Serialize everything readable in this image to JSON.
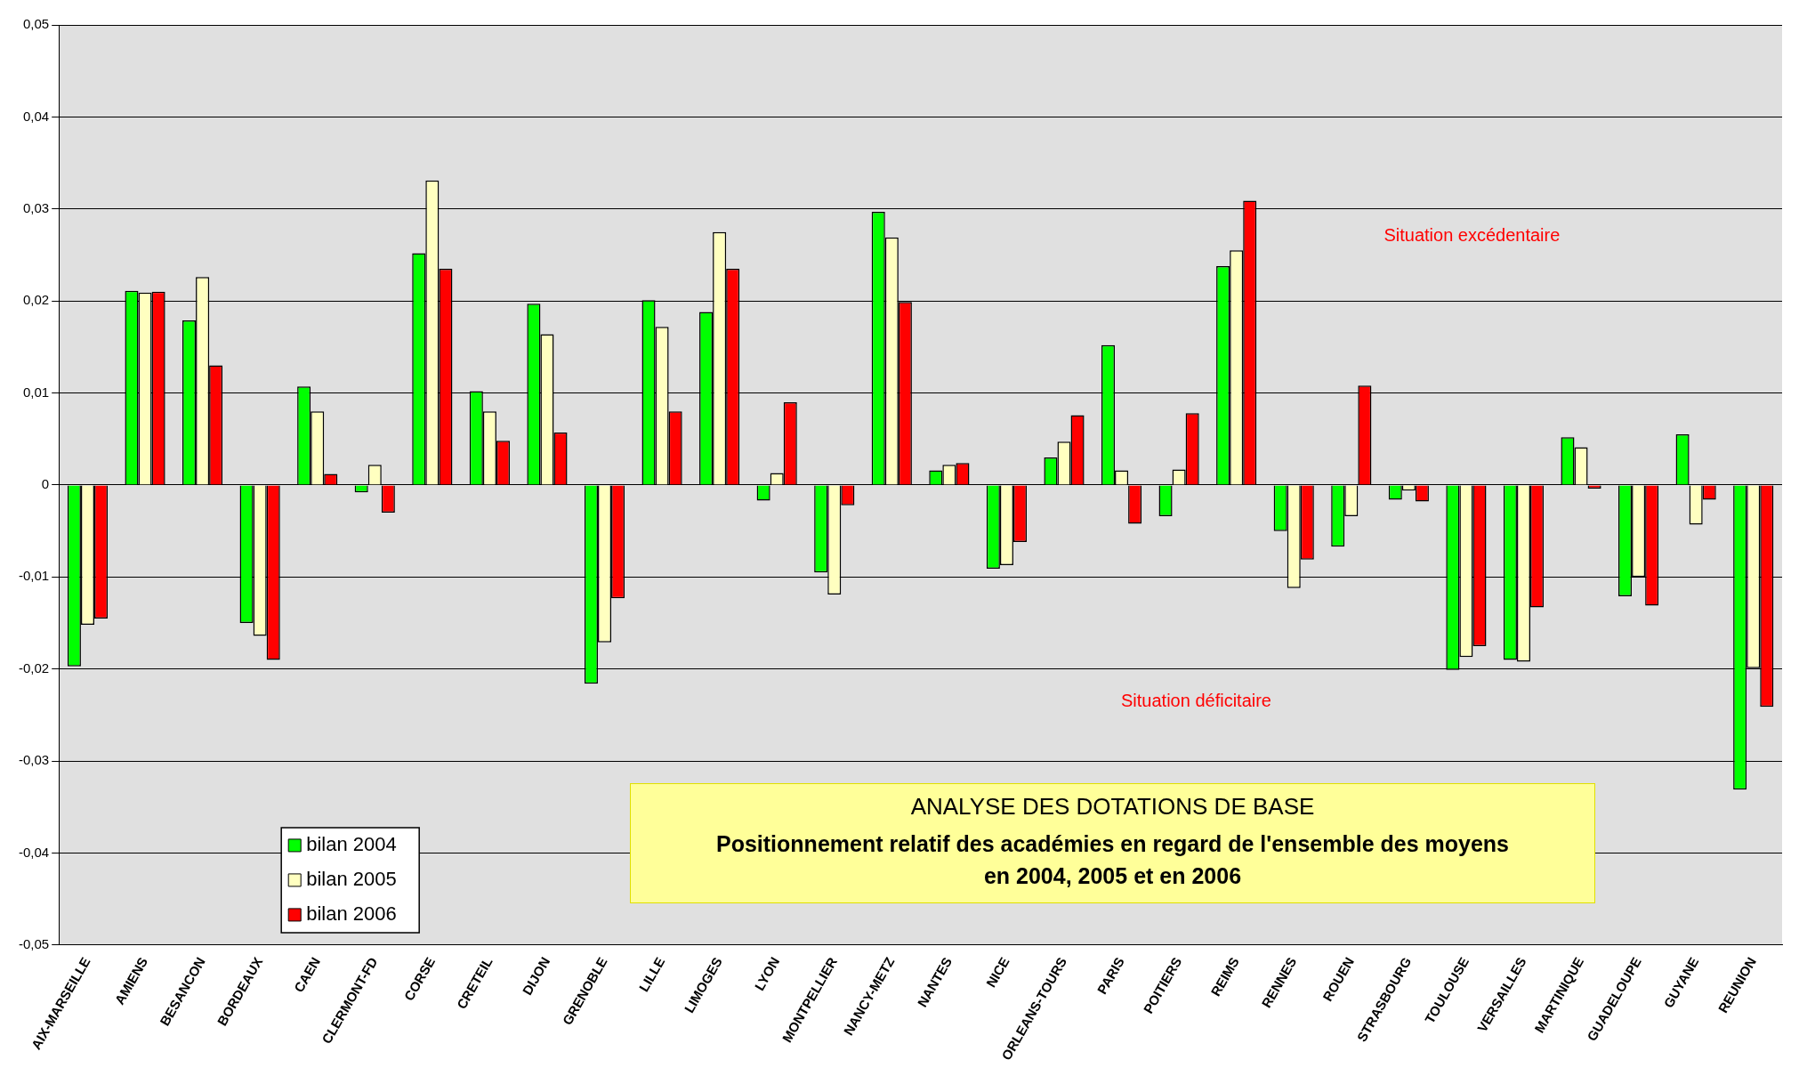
{
  "chart_data": {
    "type": "bar",
    "title": "ANALYSE DES DOTATIONS DE BASE",
    "subtitle": "Positionnement relatif des académies en regard de l'ensemble des moyens en 2004, 2005 et en 2006",
    "categories": [
      "AIX-MARSEILLE",
      "AMIENS",
      "BESANCON",
      "BORDEAUX",
      "CAEN",
      "CLERMONT-FD",
      "CORSE",
      "CRETEIL",
      "DIJON",
      "GRENOBLE",
      "LILLE",
      "LIMOGES",
      "LYON",
      "MONTPELLIER",
      "NANCY-METZ",
      "NANTES",
      "NICE",
      "ORLEANS-TOURS",
      "PARIS",
      "POITIERS",
      "REIMS",
      "RENNES",
      "ROUEN",
      "STRASBOURG",
      "TOULOUSE",
      "VERSAILLES",
      "MARTINIQUE",
      "GUADELOUPE",
      "GUYANE",
      "REUNION"
    ],
    "series": [
      {
        "name": "bilan 2004",
        "color": "#00ff00",
        "values": [
          -0.0197,
          0.0211,
          0.0179,
          -0.015,
          0.0107,
          -0.0008,
          0.0252,
          0.0102,
          0.0197,
          -0.0216,
          0.0201,
          0.0188,
          -0.0017,
          -0.0095,
          0.0297,
          0.0016,
          -0.0091,
          0.003,
          0.0152,
          -0.0034,
          0.0238,
          -0.005,
          -0.0067,
          -0.0016,
          -0.0201,
          -0.019,
          0.0052,
          -0.0121,
          0.0055,
          -0.0331
        ]
      },
      {
        "name": "bilan 2005",
        "color": "#ffffc0",
        "values": [
          -0.0152,
          0.0209,
          0.0226,
          -0.0164,
          0.008,
          0.0022,
          0.0331,
          0.008,
          0.0164,
          -0.0171,
          0.0172,
          0.0275,
          0.0013,
          -0.0119,
          0.0269,
          0.0022,
          -0.0087,
          0.0047,
          0.0016,
          0.0017,
          0.0255,
          -0.0112,
          -0.0034,
          -0.0006,
          -0.0187,
          -0.0192,
          0.0041,
          -0.01,
          -0.0043,
          -0.0199
        ]
      },
      {
        "name": "bilan 2006",
        "color": "#ff0000",
        "values": [
          -0.0145,
          0.021,
          0.013,
          -0.019,
          0.0012,
          -0.003,
          0.0235,
          0.0048,
          0.0057,
          -0.0123,
          0.008,
          0.0235,
          0.009,
          -0.0022,
          0.0199,
          0.0024,
          -0.0062,
          0.0076,
          -0.0042,
          0.0078,
          0.0309,
          -0.0081,
          0.0108,
          -0.0018,
          -0.0175,
          -0.0133,
          -0.0004,
          -0.0131,
          -0.0016,
          -0.0241
        ]
      }
    ],
    "ylim": [
      -0.05,
      0.05
    ],
    "yticks": [
      {
        "value": -0.05,
        "label": "-0,05"
      },
      {
        "value": -0.04,
        "label": "-0,04"
      },
      {
        "value": -0.03,
        "label": "-0,03"
      },
      {
        "value": -0.02,
        "label": "-0,02"
      },
      {
        "value": -0.01,
        "label": "-0,01"
      },
      0,
      {
        "value": 0.01,
        "label": "0,01"
      },
      {
        "value": 0.02,
        "label": "0,02"
      },
      {
        "value": 0.03,
        "label": "0,03"
      },
      {
        "value": 0.04,
        "label": "0,04"
      },
      {
        "value": 0.05,
        "label": "0,05"
      }
    ],
    "grid": "y",
    "legend": "bottom left",
    "annotations": [
      "Situation excédentaire",
      "Situation déficitaire"
    ]
  }
}
